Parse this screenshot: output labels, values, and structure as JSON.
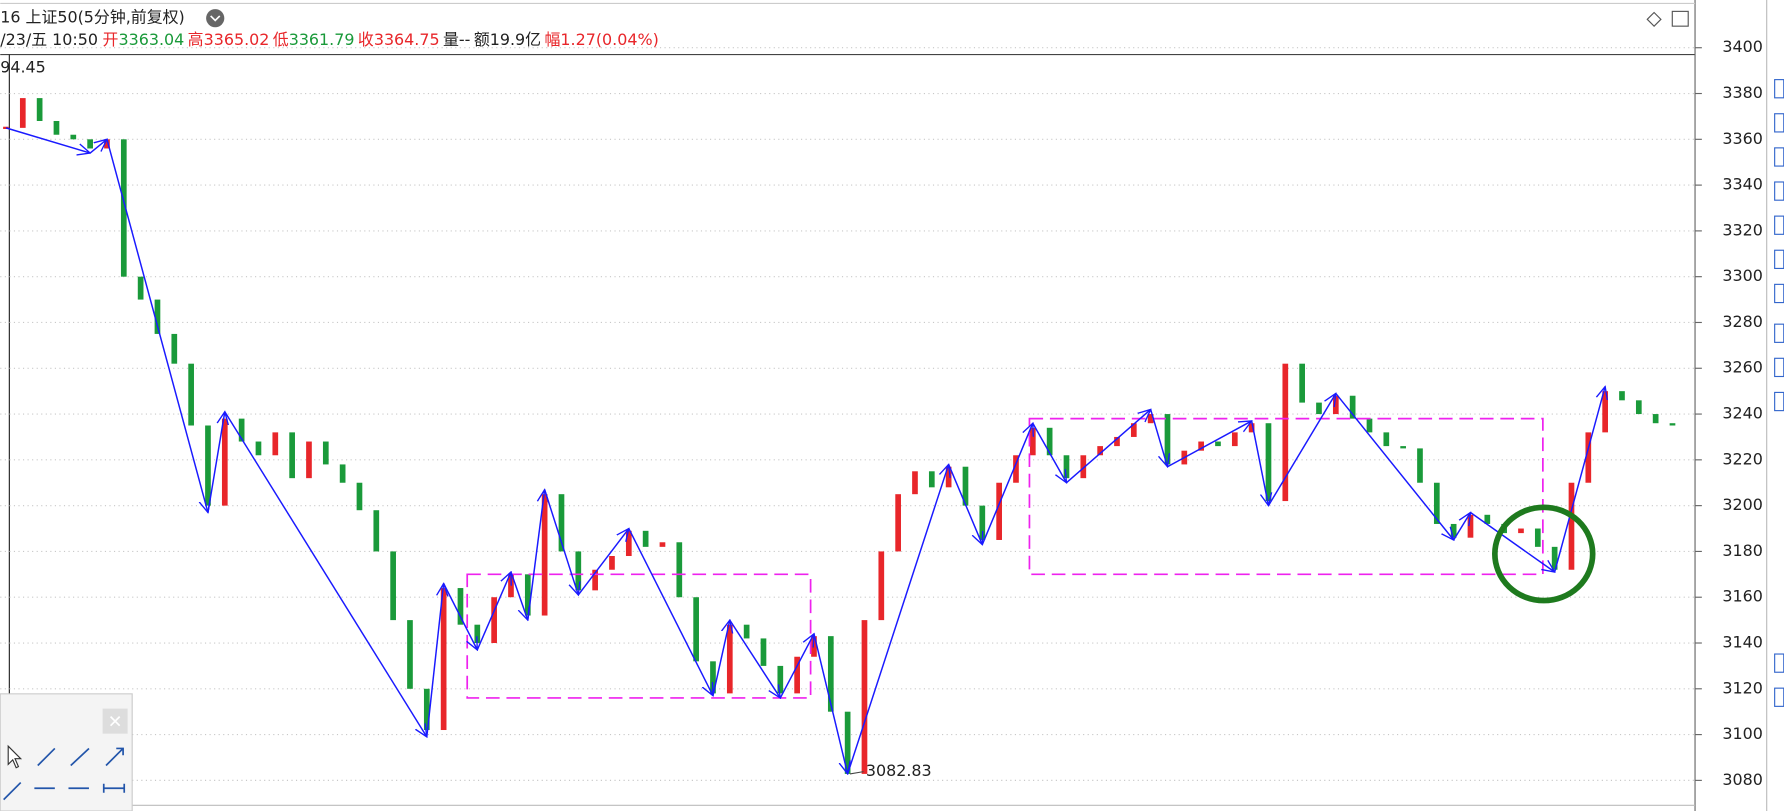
{
  "chart_data": {
    "type": "candlestick-close",
    "title": "16 上证50(5分钟,前复权)",
    "info": [
      {
        "label": "/23/五 10:50",
        "color": "#222222"
      },
      {
        "label": "开",
        "value": 3363.04,
        "color": "#e8262a",
        "value_color": "#1a9a3a"
      },
      {
        "label": "高",
        "value": 3365.02,
        "color": "#e8262a",
        "value_color": "#e8262a"
      },
      {
        "label": "低",
        "value": 3361.79,
        "color": "#e8262a",
        "value_color": "#1a9a3a"
      },
      {
        "label": "收",
        "value": 3364.75,
        "color": "#e8262a",
        "value_color": "#e8262a"
      },
      {
        "label": "量",
        "value": "--",
        "color": "#222222",
        "value_color": "#222222"
      },
      {
        "label": "额",
        "value": "19.9亿",
        "color": "#222222",
        "value_color": "#222222"
      },
      {
        "label": "幅",
        "value": "1.27(0.04%)",
        "color": "#e8262a",
        "value_color": "#e8262a"
      }
    ],
    "max_label": "94.45",
    "low_index": 50,
    "up_color": "#e8262a",
    "down_color": "#1a9a3a",
    "values": [
      3365,
      3378,
      3368,
      3362,
      3360,
      3356,
      3360,
      3300,
      3290,
      3275,
      3262,
      3235,
      3200,
      3238,
      3228,
      3222,
      3232,
      3212,
      3228,
      3218,
      3210,
      3198,
      3180,
      3150,
      3120,
      3102,
      3164,
      3148,
      3140,
      3160,
      3170,
      3152,
      3205,
      3180,
      3163,
      3172,
      3178,
      3189,
      3182,
      3184,
      3160,
      3132,
      3118,
      3148,
      3142,
      3130,
      3118,
      3134,
      3143,
      3110,
      3082.83,
      3150,
      3180,
      3205,
      3215,
      3208,
      3217,
      3200,
      3185,
      3210,
      3222,
      3234,
      3222,
      3212,
      3222,
      3226,
      3230,
      3236,
      3240,
      3218,
      3224,
      3228,
      3226,
      3232,
      3236,
      3202,
      3262,
      3245,
      3240,
      3248,
      3238,
      3232,
      3226,
      3225,
      3210,
      3192,
      3186,
      3196,
      3192,
      3188,
      3190,
      3182,
      3172,
      3210,
      3232,
      3250,
      3246,
      3240,
      3236,
      3235
    ],
    "zigzag": {
      "color": "#1a1aff",
      "x": [
        0,
        5,
        6,
        12,
        13,
        25,
        26,
        28,
        30,
        31,
        32,
        34,
        37,
        42,
        43,
        46,
        48,
        50,
        56,
        58,
        61,
        63,
        68,
        69,
        74,
        75,
        79,
        86,
        87,
        92,
        95
      ],
      "values": [
        3365,
        3354,
        3360,
        3197,
        3241,
        3099,
        3166,
        3137,
        3171,
        3150,
        3207,
        3161,
        3190,
        3117,
        3150,
        3116,
        3144,
        3082.83,
        3218,
        3183,
        3236,
        3210,
        3242,
        3217,
        3237,
        3200,
        3249,
        3185,
        3197,
        3171,
        3252
      ]
    },
    "boxes": {
      "color": "#ee22ee",
      "items": [
        {
          "x": [
            27.4,
            47.8
          ],
          "y": [
            3170,
            3116
          ]
        },
        {
          "x": [
            60.8,
            91.3
          ],
          "y": [
            3238,
            3170
          ]
        }
      ]
    },
    "xlim": [
      -0.34,
      100.34
    ],
    "ylim": [
      3070.6,
      3397
    ],
    "yticks": [
      3080,
      3100,
      3120,
      3140,
      3160,
      3180,
      3200,
      3220,
      3240,
      3260,
      3280,
      3300,
      3320,
      3340,
      3360,
      3380,
      3400
    ],
    "grid": true
  }
}
